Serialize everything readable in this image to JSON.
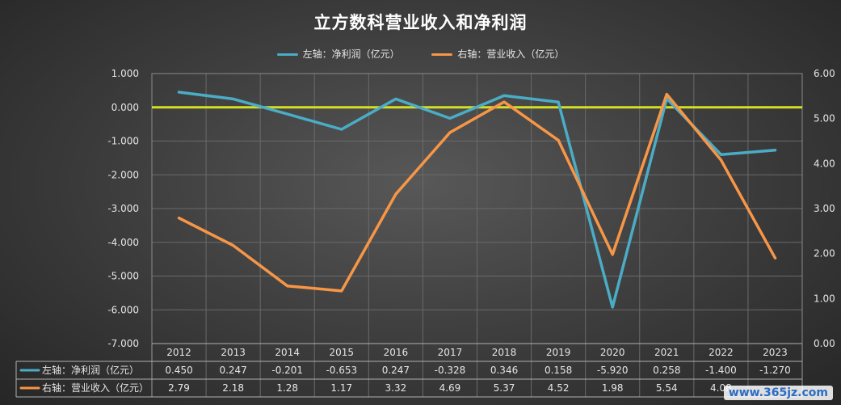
{
  "chart_data": {
    "type": "line",
    "title": "立方数科营业收入和净利润",
    "categories": [
      "2012",
      "2013",
      "2014",
      "2015",
      "2016",
      "2017",
      "2018",
      "2019",
      "2020",
      "2021",
      "2022",
      "2023"
    ],
    "series": [
      {
        "name": "左轴：净利润（亿元）",
        "axis": "left",
        "color": "#4bacc6",
        "values": [
          0.45,
          0.247,
          -0.201,
          -0.653,
          0.247,
          -0.328,
          0.346,
          0.158,
          -5.92,
          0.258,
          -1.4,
          -1.27
        ],
        "labels": [
          "0.450",
          "0.247",
          "-0.201",
          "-0.653",
          "0.247",
          "-0.328",
          "0.346",
          "0.158",
          "-5.920",
          "0.258",
          "-1.400",
          "-1.270"
        ]
      },
      {
        "name": "右轴：营业收入（亿元）",
        "axis": "right",
        "color": "#f79646",
        "values": [
          2.79,
          2.18,
          1.28,
          1.17,
          3.32,
          4.69,
          5.37,
          4.52,
          1.98,
          5.54,
          4.08,
          1.9
        ],
        "labels": [
          "2.79",
          "2.18",
          "1.28",
          "1.17",
          "3.32",
          "4.69",
          "5.37",
          "4.52",
          "1.98",
          "5.54",
          "4.08",
          ""
        ]
      }
    ],
    "left_axis": {
      "range": [
        -7,
        1
      ],
      "ticks": [
        "1.000",
        "0.000",
        "-1.000",
        "-2.000",
        "-3.000",
        "-4.000",
        "-5.000",
        "-6.000",
        "-7.000"
      ]
    },
    "right_axis": {
      "range": [
        0,
        6
      ],
      "ticks": [
        "6.00",
        "5.00",
        "4.00",
        "3.00",
        "2.00",
        "1.00",
        "0.00"
      ]
    },
    "reference_line": {
      "axis": "left",
      "value": 0,
      "color": "#d4e021"
    },
    "grid": true,
    "legend_position": "top",
    "data_table": true
  },
  "watermark": "www.365jz.com"
}
